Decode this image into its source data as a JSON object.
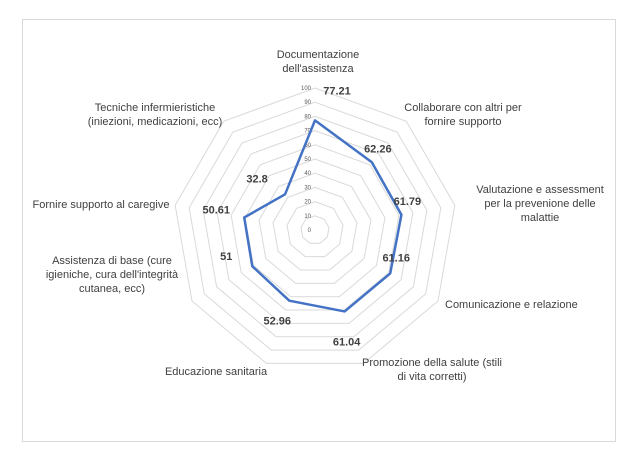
{
  "chart_data": {
    "type": "radar",
    "categories": [
      [
        "Documentazione",
        "dell'assistenza"
      ],
      [
        "Collaborare con altri per",
        "fornire supporto"
      ],
      [
        "Valutazione e assessment",
        "per la prevenione delle",
        "malattie"
      ],
      [
        "Comunicazione e relazione"
      ],
      [
        "Promozione della salute (stili",
        "di vita corretti)"
      ],
      [
        "Educazione sanitaria"
      ],
      [
        "Assistenza di base (cure",
        "igieniche, cura dell'integrità",
        "cutanea, ecc)"
      ],
      [
        "Fornire supporto al caregive"
      ],
      [
        "Tecniche infermieristiche",
        "(iniezioni, medicazioni, ecc)"
      ]
    ],
    "series": [
      {
        "values": [
          77.21,
          62.26,
          61.79,
          61.16,
          61.04,
          52.96,
          51,
          50.61,
          32.8
        ],
        "labels": [
          "77.21",
          "62.26",
          "61.79",
          "61.16",
          "61.04",
          "52.96",
          "51",
          "50.61",
          "32.8"
        ]
      }
    ],
    "rlim": [
      0,
      100
    ],
    "ticks": [
      "0",
      "10",
      "20",
      "30",
      "40",
      "50",
      "60",
      "70",
      "80",
      "90",
      "100"
    ],
    "grid": true,
    "line_color": "#4472c4",
    "grid_color": "#d9d9d9"
  }
}
